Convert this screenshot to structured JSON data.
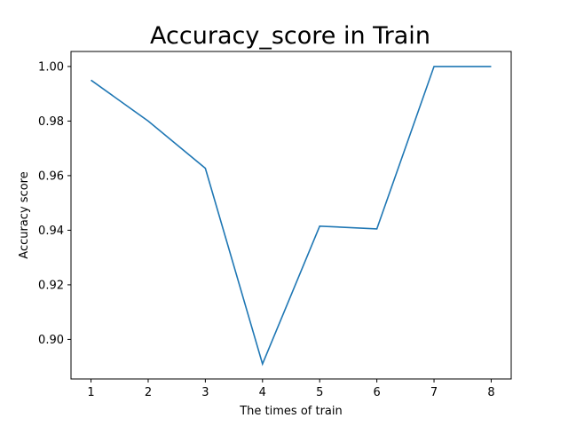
{
  "chart_data": {
    "type": "line",
    "title": "Accuracy_score in Train",
    "xlabel": "The times of train",
    "ylabel": "Accuracy score",
    "x": [
      1,
      2,
      3,
      4,
      5,
      6,
      7,
      8
    ],
    "series": [
      {
        "values": [
          0.995,
          0.98,
          0.9627,
          0.891,
          0.9415,
          0.9405,
          1.0,
          1.0
        ],
        "color": "#1f77b4"
      }
    ],
    "xticks": [
      1,
      2,
      3,
      4,
      5,
      6,
      7,
      8
    ],
    "xtick_labels": [
      "1",
      "2",
      "3",
      "4",
      "5",
      "6",
      "7",
      "8"
    ],
    "yticks": [
      0.9,
      0.92,
      0.94,
      0.96,
      0.98,
      1.0
    ],
    "ytick_labels": [
      "0.90",
      "0.92",
      "0.94",
      "0.96",
      "0.98",
      "1.00"
    ],
    "xlim": [
      0.65,
      8.35
    ],
    "ylim": [
      0.8855,
      1.0055
    ],
    "grid": false,
    "legend": null
  }
}
